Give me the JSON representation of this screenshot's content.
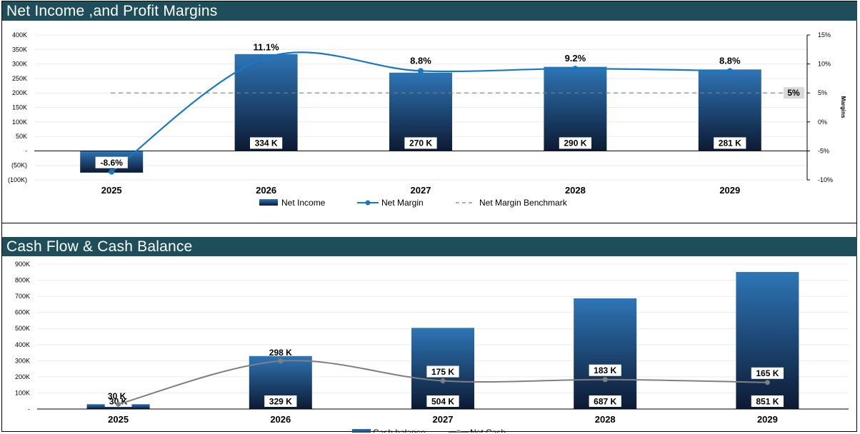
{
  "panels": [
    {
      "title": "Net Income ,and Profit Margins"
    },
    {
      "title": "Cash Flow & Cash Balance"
    }
  ],
  "chart_data": [
    {
      "type": "bar",
      "title": "Net Income ,and Profit Margins",
      "categories": [
        "2025",
        "2026",
        "2027",
        "2028",
        "2029"
      ],
      "series": [
        {
          "name": "Net Income",
          "type": "bar",
          "values": [
            -75000,
            334000,
            270000,
            290000,
            281000
          ],
          "labels": [
            "",
            "334 K",
            "270 K",
            "290 K",
            "281 K"
          ]
        },
        {
          "name": "Net Margin",
          "type": "line",
          "axis": "right",
          "values": [
            -8.6,
            11.1,
            8.8,
            9.2,
            8.8
          ],
          "labels": [
            "-8.6%",
            "11.1%",
            "8.8%",
            "9.2%",
            "8.8%"
          ]
        },
        {
          "name": "Net Margin Benchmark",
          "type": "line",
          "style": "dashed",
          "axis": "right",
          "value": 5,
          "label": "5%"
        }
      ],
      "y_left": {
        "min": -100000,
        "max": 400000,
        "ticks": [
          "(100K)",
          "(50K)",
          "-",
          "50K",
          "100K",
          "150K",
          "200K",
          "250K",
          "300K",
          "350K",
          "400K"
        ]
      },
      "y_right": {
        "min": -10,
        "max": 15,
        "label": "Margins",
        "ticks": [
          "-10%",
          "-5%",
          "0%",
          "5%",
          "10%",
          "15%"
        ]
      },
      "legend": "bottom",
      "grid": true,
      "colors": {
        "bar_top": "#2e75b6",
        "bar_bottom": "#0c1a33",
        "line": "#1a78c2",
        "benchmark": "#7f7f7f"
      }
    },
    {
      "type": "bar",
      "title": "Cash Flow & Cash Balance",
      "categories": [
        "2025",
        "2026",
        "2027",
        "2028",
        "2029"
      ],
      "series": [
        {
          "name": "Cash balance",
          "type": "bar",
          "values": [
            30000,
            329000,
            504000,
            687000,
            851000
          ],
          "labels": [
            "30 K",
            "329 K",
            "504 K",
            "687 K",
            "851 K"
          ]
        },
        {
          "name": "Net Cash",
          "type": "line",
          "values": [
            30000,
            298000,
            175000,
            183000,
            165000
          ],
          "labels": [
            "30 K",
            "298 K",
            "175 K",
            "183 K",
            "165 K"
          ]
        }
      ],
      "y_left": {
        "min": 0,
        "max": 900000,
        "ticks": [
          "-",
          "100K",
          "200K",
          "300K",
          "400K",
          "500K",
          "600K",
          "700K",
          "800K",
          "900K"
        ]
      },
      "legend": "bottom",
      "grid": true,
      "colors": {
        "bar_top": "#2e75b6",
        "bar_bottom": "#0c1a33",
        "line": "#808080"
      }
    }
  ]
}
